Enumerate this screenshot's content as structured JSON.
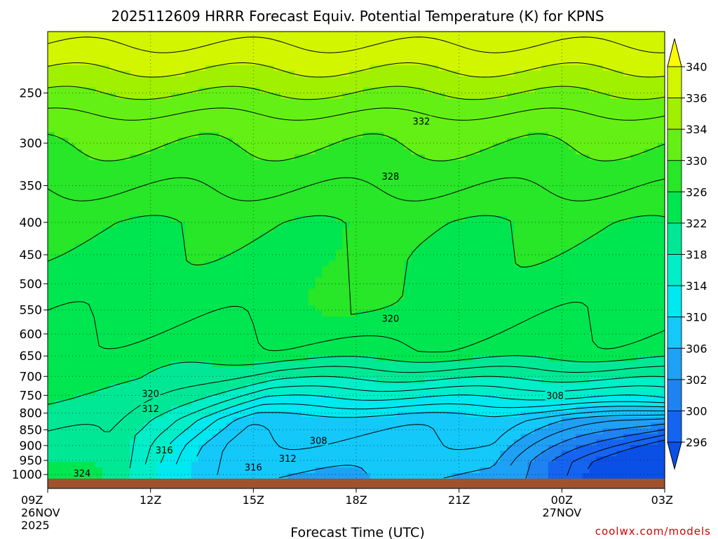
{
  "chart_data": {
    "type": "heatmap",
    "title": "2025112609 HRRR Forecast Equiv. Potential Temperature (K) for KPNS",
    "xlabel": "Forecast Time (UTC)",
    "ylabel": "",
    "x_ticks": [
      "09Z\n26NOV\n2025",
      "12Z",
      "15Z",
      "18Z",
      "21Z",
      "00Z\n27NOV",
      "03Z"
    ],
    "x_hours": [
      9,
      12,
      15,
      18,
      21,
      24,
      27
    ],
    "xlim": [
      9,
      27
    ],
    "y_ticks": [
      250,
      300,
      350,
      400,
      450,
      500,
      550,
      600,
      650,
      700,
      750,
      800,
      850,
      900,
      950,
      1000
    ],
    "ylim": [
      1015,
      200
    ],
    "yscale": "log",
    "colorbar": {
      "labels": [
        296,
        300,
        302,
        306,
        310,
        314,
        318,
        322,
        326,
        330,
        334,
        336,
        340
      ],
      "bins": [
        {
          "lo": 292,
          "hi": 296,
          "color": "#0a50e6"
        },
        {
          "lo": 296,
          "hi": 300,
          "color": "#1464f0"
        },
        {
          "lo": 300,
          "hi": 302,
          "color": "#1e82f0"
        },
        {
          "lo": 302,
          "hi": 306,
          "color": "#1ea0f5"
        },
        {
          "lo": 306,
          "hi": 310,
          "color": "#14c8fa"
        },
        {
          "lo": 310,
          "hi": 314,
          "color": "#00e8f0"
        },
        {
          "lo": 314,
          "hi": 318,
          "color": "#00eec8"
        },
        {
          "lo": 318,
          "hi": 322,
          "color": "#00e896"
        },
        {
          "lo": 322,
          "hi": 326,
          "color": "#00e650"
        },
        {
          "lo": 326,
          "hi": 330,
          "color": "#28e628"
        },
        {
          "lo": 330,
          "hi": 334,
          "color": "#64f014"
        },
        {
          "lo": 334,
          "hi": 336,
          "color": "#a0f000"
        },
        {
          "lo": 336,
          "hi": 340,
          "color": "#d2f500"
        },
        {
          "lo": 340,
          "hi": 346,
          "color": "#fafa00"
        }
      ]
    },
    "contour_labels": [
      {
        "text": "332",
        "x_hour": 19.9,
        "p": 277
      },
      {
        "text": "328",
        "x_hour": 19.0,
        "p": 338
      },
      {
        "text": "320",
        "x_hour": 19.0,
        "p": 567
      },
      {
        "text": "320",
        "x_hour": 12.0,
        "p": 745
      },
      {
        "text": "312",
        "x_hour": 12.0,
        "p": 787
      },
      {
        "text": "308",
        "x_hour": 23.8,
        "p": 750
      },
      {
        "text": "308",
        "x_hour": 16.9,
        "p": 883
      },
      {
        "text": "312",
        "x_hour": 16.0,
        "p": 943
      },
      {
        "text": "316",
        "x_hour": 12.4,
        "p": 914
      },
      {
        "text": "316",
        "x_hour": 15.0,
        "p": 973
      },
      {
        "text": "324",
        "x_hour": 10.0,
        "p": 994
      }
    ]
  },
  "credit": "coolwx.com/models",
  "colors": {
    "ground": "#a0522d",
    "contour": "#000000",
    "credit": "#d00000"
  }
}
